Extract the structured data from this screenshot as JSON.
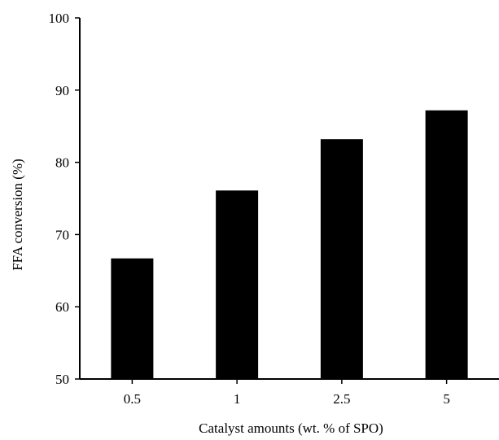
{
  "chart_data": {
    "type": "bar",
    "categories": [
      "0.5",
      "1",
      "2.5",
      "5"
    ],
    "values": [
      66.7,
      76.1,
      83.2,
      87.2
    ],
    "title": "",
    "xlabel": "Catalyst amounts (wt. % of SPO)",
    "ylabel": "FFA conversion (%)",
    "ylim": [
      50,
      100
    ],
    "yticks": [
      50,
      60,
      70,
      80,
      90,
      100
    ],
    "grid": false,
    "bar_color": "#000000",
    "axis_color": "#000000"
  }
}
